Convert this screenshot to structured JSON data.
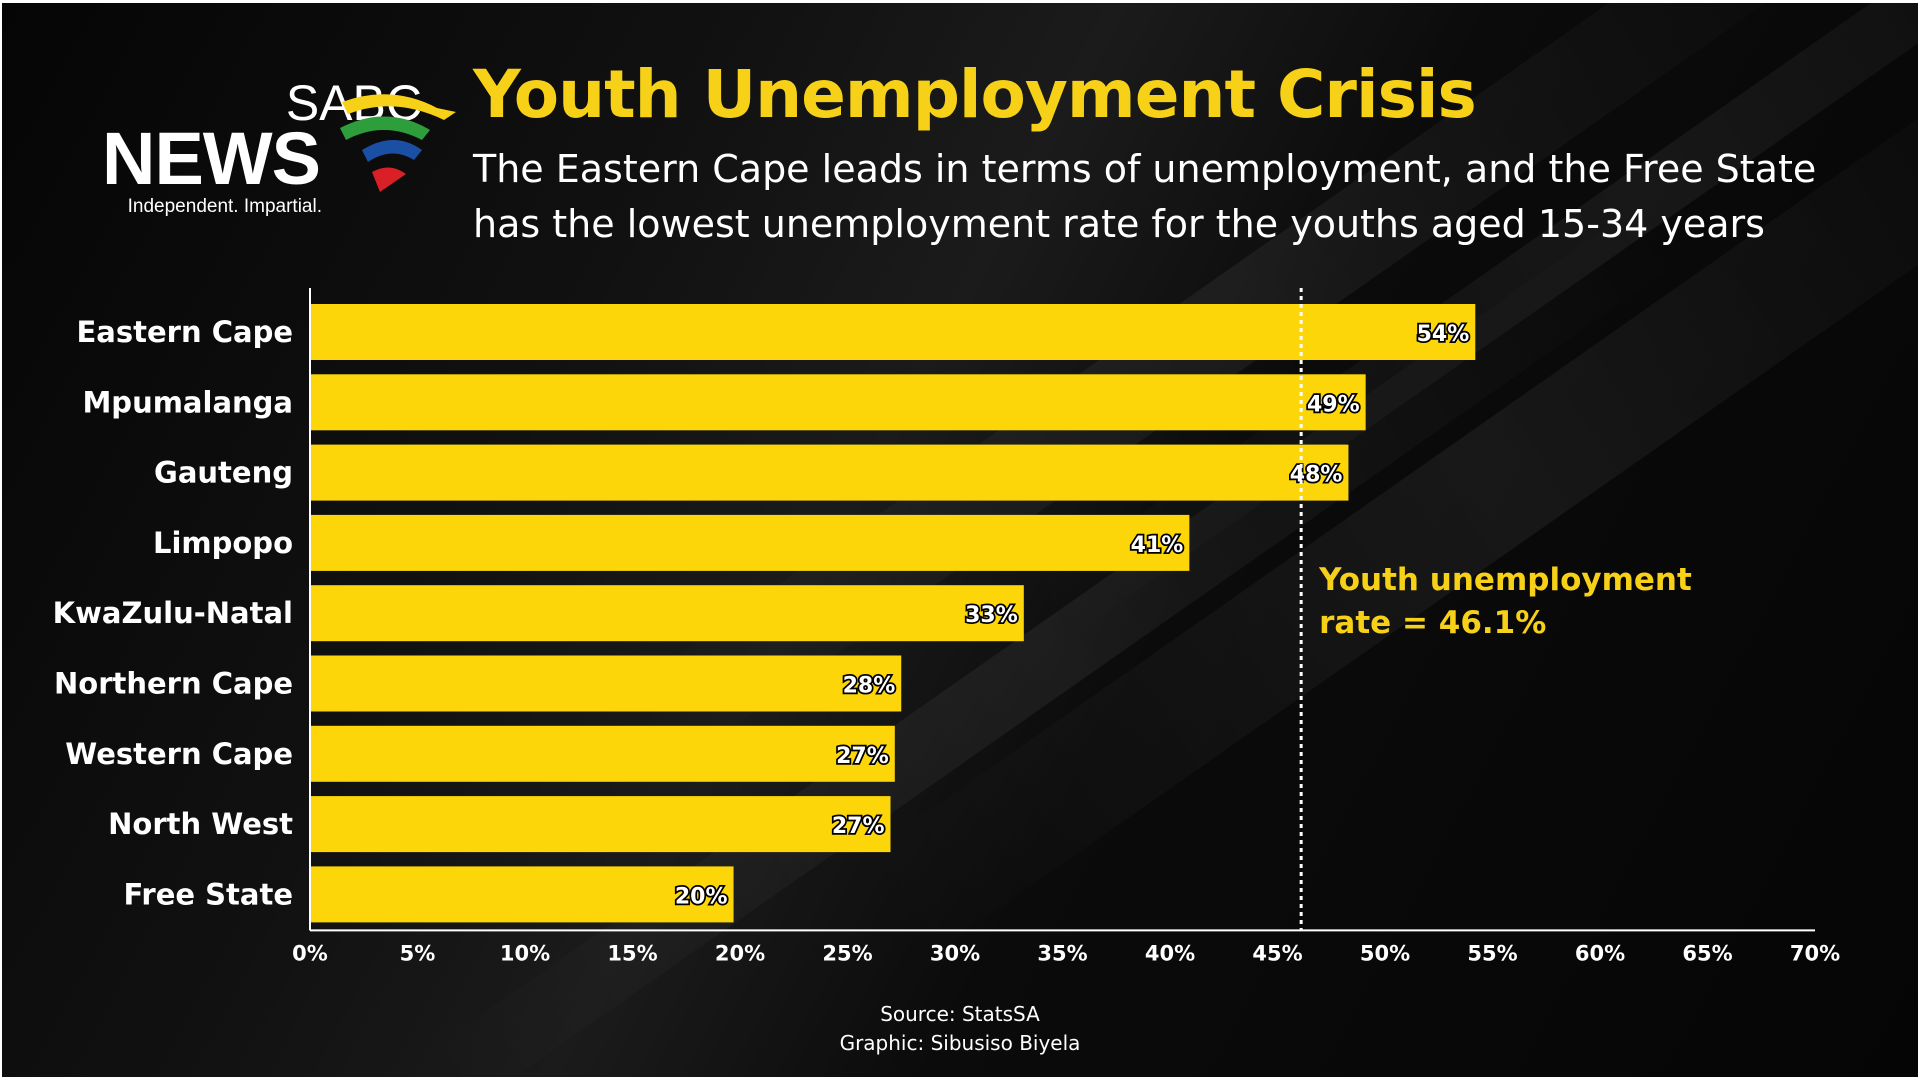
{
  "brand": {
    "name_top": "SABC",
    "name_bottom": "NEWS",
    "tagline": "Independent. Impartial.",
    "logo_colors": [
      "#f7d117",
      "#2e9e3c",
      "#1b4fa3",
      "#d92027"
    ]
  },
  "header": {
    "title": "Youth Unemployment Crisis",
    "subtitle_line1": "The Eastern Cape leads in terms of unemployment, and the Free State",
    "subtitle_line2": "has the lowest unemployment rate for the youths aged 15-34 years"
  },
  "footer": {
    "source": "Source: StatsSA",
    "graphic": "Graphic: Sibusiso Biyela"
  },
  "colors": {
    "background": "#000000",
    "bar_fill": "#fdd60a",
    "accent_text": "#f7d117",
    "text": "#ffffff"
  },
  "chart_data": {
    "type": "bar",
    "orientation": "horizontal",
    "categories": [
      "Eastern Cape",
      "Mpumalanga",
      "Gauteng",
      "Limpopo",
      "KwaZulu-Natal",
      "Northern Cape",
      "Western Cape",
      "North West",
      "Free State"
    ],
    "values": [
      54.2,
      49.1,
      48.3,
      40.9,
      33.2,
      27.5,
      27.2,
      27.0,
      19.7
    ],
    "value_labels": [
      "54%",
      "49%",
      "48%",
      "41%",
      "33%",
      "28%",
      "27%",
      "27%",
      "20%"
    ],
    "xlim": [
      0,
      70
    ],
    "x_ticks": [
      "0%",
      "5%",
      "10%",
      "15%",
      "20%",
      "25%",
      "30%",
      "35%",
      "40%",
      "45%",
      "50%",
      "55%",
      "60%",
      "65%",
      "70%"
    ],
    "reference_line": {
      "value": 46.1,
      "style": "dotted",
      "label_line1": "Youth unemployment",
      "label_line2": "rate = 46.1%"
    },
    "grid": false,
    "legend": "none"
  }
}
